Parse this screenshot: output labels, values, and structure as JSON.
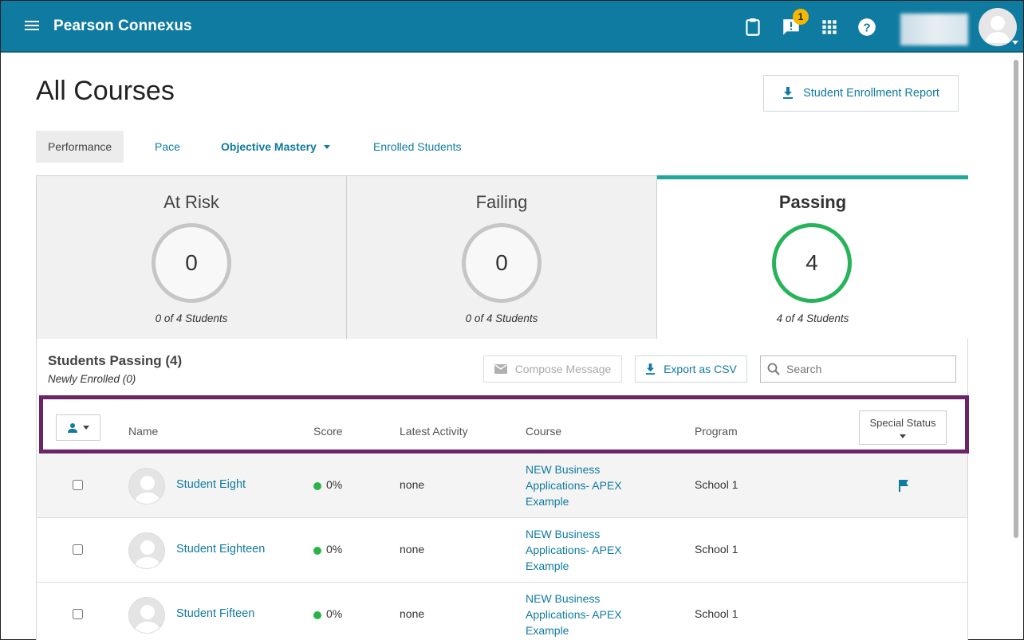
{
  "header": {
    "brand": "Pearson Connexus",
    "notification_count": "1",
    "colors": {
      "primary": "#107ba0",
      "accent_teal": "#21a89a",
      "passing_green": "#27b35a",
      "badge": "#f5b800",
      "highlight": "#6b2468"
    }
  },
  "page": {
    "title": "All Courses",
    "report_button": "Student Enrollment Report"
  },
  "tabs": [
    {
      "label": "Performance"
    },
    {
      "label": "Pace"
    },
    {
      "label": "Objective Mastery"
    },
    {
      "label": "Enrolled Students"
    }
  ],
  "cards": [
    {
      "title": "At Risk",
      "count": "0",
      "sub": "0 of 4 Students"
    },
    {
      "title": "Failing",
      "count": "0",
      "sub": "0 of 4 Students"
    },
    {
      "title": "Passing",
      "count": "4",
      "sub": "4 of 4 Students"
    }
  ],
  "students": {
    "title": "Students Passing (4)",
    "subtitle": "Newly Enrolled (0)",
    "compose": "Compose Message",
    "export": "Export as CSV",
    "search_placeholder": "Search",
    "columns": {
      "name": "Name",
      "score": "Score",
      "latest": "Latest Activity",
      "course": "Course",
      "program": "Program",
      "special": "Special Status"
    },
    "rows": [
      {
        "name": "Student Eight",
        "score": "0%",
        "activity": "none",
        "course": "NEW Business Applications- APEX Example",
        "program": "School 1",
        "flagged": true
      },
      {
        "name": "Student Eighteen",
        "score": "0%",
        "activity": "none",
        "course": "NEW Business Applications- APEX Example",
        "program": "School 1",
        "flagged": false
      },
      {
        "name": "Student Fifteen",
        "score": "0%",
        "activity": "none",
        "course": "NEW Business Applications- APEX Example",
        "program": "School 1",
        "flagged": false
      }
    ]
  }
}
